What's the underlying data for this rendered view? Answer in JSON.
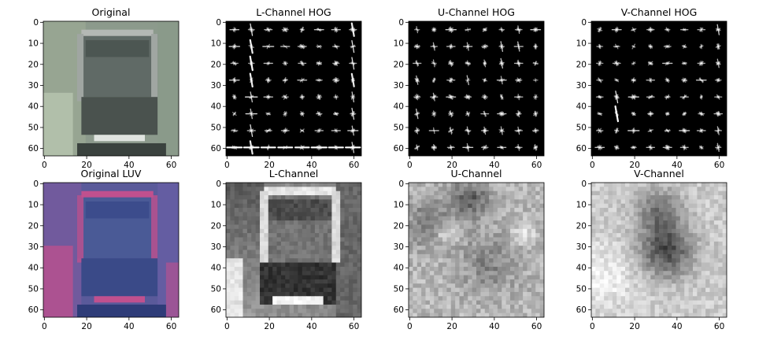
{
  "chart_data": [
    {
      "type": "heatmap",
      "title": "Original",
      "image_kind": "car-rgb",
      "extent": [
        0,
        63
      ],
      "xticks": [
        0,
        20,
        40,
        60
      ],
      "yticks": [
        0,
        10,
        20,
        30,
        40,
        50,
        60
      ],
      "grid": false
    },
    {
      "type": "heatmap",
      "title": "L-Channel HOG",
      "image_kind": "hog-l",
      "extent": [
        0,
        63
      ],
      "xticks": [
        0,
        20,
        40,
        60
      ],
      "yticks": [
        0,
        10,
        20,
        30,
        40,
        50,
        60
      ],
      "grid": false
    },
    {
      "type": "heatmap",
      "title": "U-Channel HOG",
      "image_kind": "hog-u",
      "extent": [
        0,
        63
      ],
      "xticks": [
        0,
        20,
        40,
        60
      ],
      "yticks": [
        0,
        10,
        20,
        30,
        40,
        50,
        60
      ],
      "grid": false
    },
    {
      "type": "heatmap",
      "title": "V-Channel HOG",
      "image_kind": "hog-v",
      "extent": [
        0,
        63
      ],
      "xticks": [
        0,
        20,
        40,
        60
      ],
      "yticks": [
        0,
        10,
        20,
        30,
        40,
        50,
        60
      ],
      "grid": false
    },
    {
      "type": "heatmap",
      "title": "Original LUV",
      "image_kind": "car-luv",
      "extent": [
        0,
        63
      ],
      "xticks": [
        0,
        20,
        40,
        60
      ],
      "yticks": [
        0,
        10,
        20,
        30,
        40,
        50,
        60
      ],
      "grid": false
    },
    {
      "type": "heatmap",
      "title": "L-Channel",
      "image_kind": "gray-l",
      "extent": [
        0,
        63
      ],
      "xticks": [
        0,
        20,
        40,
        60
      ],
      "yticks": [
        0,
        10,
        20,
        30,
        40,
        50,
        60
      ],
      "grid": false
    },
    {
      "type": "heatmap",
      "title": "U-Channel",
      "image_kind": "gray-u",
      "extent": [
        0,
        63
      ],
      "xticks": [
        0,
        20,
        40,
        60
      ],
      "yticks": [
        0,
        10,
        20,
        30,
        40,
        50,
        60
      ],
      "grid": false
    },
    {
      "type": "heatmap",
      "title": "V-Channel",
      "image_kind": "gray-v",
      "extent": [
        0,
        63
      ],
      "xticks": [
        0,
        20,
        40,
        60
      ],
      "yticks": [
        0,
        10,
        20,
        30,
        40,
        50,
        60
      ],
      "grid": false
    }
  ],
  "colors": {
    "hog_background": "#000000",
    "hog_stroke": "#ffffff",
    "luv_background": "#5a5a9a",
    "luv_accent": "#c0508e",
    "rgb_background": "#8c9a8c"
  }
}
